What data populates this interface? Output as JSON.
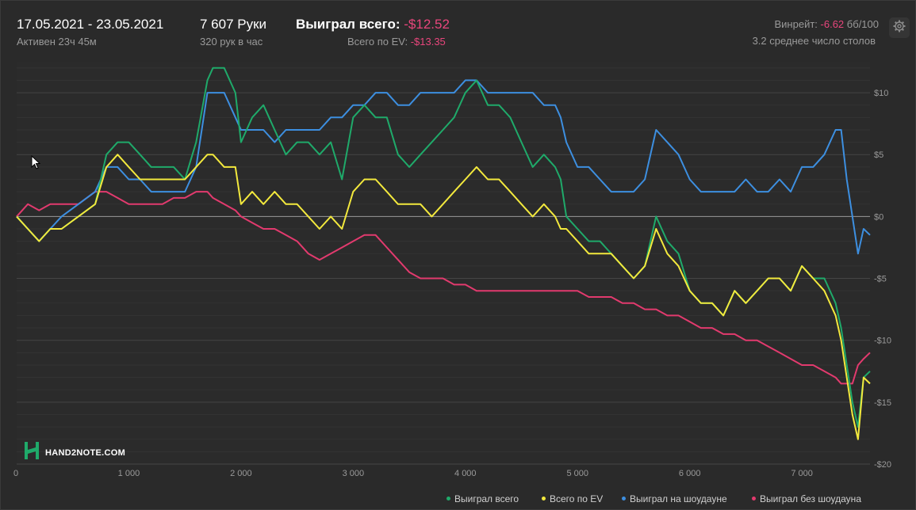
{
  "header": {
    "date_range": "17.05.2021 - 23.05.2021",
    "active": "Активен 23ч 45м",
    "hands": "7 607 Руки",
    "hands_per_hour": "320 рук в час",
    "won_total_label": "Выиграл всего:",
    "won_total_value": "-$12.52",
    "ev_label": "Всего по EV:",
    "ev_value": "-$13.35",
    "winrate_label": "Винрейт:",
    "winrate_value": "-6.62",
    "winrate_unit": "бб/100",
    "avg_tables": "3.2 среднее число столов",
    "settings_icon": "gear-icon"
  },
  "logo": {
    "text": "HAND2NOTE.COM"
  },
  "chart_data": {
    "type": "line",
    "x_ticks": [
      0,
      1000,
      2000,
      3000,
      4000,
      5000,
      6000,
      7000
    ],
    "x_tick_labels": [
      "0",
      "1 000",
      "2 000",
      "3 000",
      "4 000",
      "5 000",
      "6 000",
      "7 000"
    ],
    "xlim": [
      0,
      7607
    ],
    "y_ticks": [
      10,
      5,
      0,
      -5,
      -10,
      -15,
      -20
    ],
    "y_tick_labels": [
      "$10",
      "$5",
      "$0",
      "-$5",
      "-$10",
      "-$15",
      "-$20"
    ],
    "ylim": [
      -20,
      12.5
    ],
    "legend_position": "bottom-right",
    "series": [
      {
        "name": "Выиграл всего",
        "color": "#1faa6a",
        "x": [
          0,
          100,
          200,
          300,
          400,
          550,
          700,
          800,
          900,
          1000,
          1100,
          1200,
          1300,
          1400,
          1500,
          1600,
          1700,
          1750,
          1850,
          1950,
          2000,
          2100,
          2200,
          2300,
          2400,
          2500,
          2600,
          2700,
          2800,
          2900,
          3000,
          3100,
          3200,
          3300,
          3400,
          3500,
          3600,
          3700,
          3800,
          3900,
          4000,
          4100,
          4200,
          4300,
          4400,
          4500,
          4600,
          4700,
          4800,
          4850,
          4900,
          5000,
          5100,
          5200,
          5300,
          5400,
          5500,
          5600,
          5700,
          5800,
          5900,
          6000,
          6100,
          6200,
          6300,
          6400,
          6500,
          6600,
          6700,
          6800,
          6900,
          7000,
          7100,
          7200,
          7300,
          7350,
          7400,
          7450,
          7500,
          7550,
          7607
        ],
        "y": [
          0,
          -1,
          -2,
          -1,
          -1,
          0,
          1,
          5,
          6,
          6,
          5,
          4,
          4,
          4,
          3,
          6,
          11,
          12,
          12,
          10,
          6,
          8,
          9,
          7,
          5,
          6,
          6,
          5,
          6,
          3,
          8,
          9,
          8,
          8,
          5,
          4,
          5,
          6,
          7,
          8,
          10,
          11,
          9,
          9,
          8,
          6,
          4,
          5,
          4,
          3,
          0,
          -1,
          -2,
          -2,
          -3,
          -4,
          -5,
          -4,
          0,
          -2,
          -3,
          -6,
          -7,
          -7,
          -8,
          -6,
          -7,
          -6,
          -5,
          -5,
          -6,
          -4,
          -5,
          -5,
          -7,
          -9,
          -12,
          -15,
          -17,
          -13,
          -12.5
        ]
      },
      {
        "name": "Всего по EV",
        "color": "#f3e93d",
        "x": [
          0,
          100,
          200,
          300,
          400,
          550,
          700,
          800,
          900,
          1000,
          1100,
          1200,
          1300,
          1400,
          1500,
          1600,
          1700,
          1750,
          1850,
          1950,
          2000,
          2100,
          2200,
          2300,
          2400,
          2500,
          2600,
          2700,
          2800,
          2900,
          3000,
          3100,
          3200,
          3300,
          3400,
          3500,
          3600,
          3700,
          3800,
          3900,
          4000,
          4100,
          4200,
          4300,
          4400,
          4500,
          4600,
          4700,
          4800,
          4850,
          4900,
          5000,
          5100,
          5200,
          5300,
          5400,
          5500,
          5600,
          5700,
          5800,
          5900,
          6000,
          6100,
          6200,
          6300,
          6400,
          6500,
          6600,
          6700,
          6800,
          6900,
          7000,
          7100,
          7200,
          7300,
          7350,
          7400,
          7450,
          7500,
          7550,
          7607
        ],
        "y": [
          0,
          -1,
          -2,
          -1,
          -1,
          0,
          1,
          4,
          5,
          4,
          3,
          3,
          3,
          3,
          3,
          4,
          5,
          5,
          4,
          4,
          1,
          2,
          1,
          2,
          1,
          1,
          0,
          -1,
          0,
          -1,
          2,
          3,
          3,
          2,
          1,
          1,
          1,
          0,
          1,
          2,
          3,
          4,
          3,
          3,
          2,
          1,
          0,
          1,
          0,
          -1,
          -1,
          -2,
          -3,
          -3,
          -3,
          -4,
          -5,
          -4,
          -1,
          -3,
          -4,
          -6,
          -7,
          -7,
          -8,
          -6,
          -7,
          -6,
          -5,
          -5,
          -6,
          -4,
          -5,
          -6,
          -8,
          -10,
          -13,
          -16,
          -18,
          -13,
          -13.5
        ]
      },
      {
        "name": "Выиграл на шоудауне",
        "color": "#3d8fe0",
        "x": [
          0,
          100,
          200,
          300,
          400,
          550,
          700,
          800,
          900,
          1000,
          1100,
          1200,
          1300,
          1400,
          1500,
          1600,
          1700,
          1750,
          1850,
          1950,
          2000,
          2100,
          2200,
          2300,
          2400,
          2500,
          2600,
          2700,
          2800,
          2900,
          3000,
          3100,
          3200,
          3300,
          3400,
          3500,
          3600,
          3700,
          3800,
          3900,
          4000,
          4100,
          4200,
          4300,
          4400,
          4500,
          4600,
          4700,
          4800,
          4850,
          4900,
          5000,
          5100,
          5200,
          5300,
          5400,
          5500,
          5600,
          5700,
          5800,
          5900,
          6000,
          6100,
          6200,
          6300,
          6400,
          6500,
          6600,
          6700,
          6800,
          6900,
          7000,
          7100,
          7200,
          7300,
          7350,
          7400,
          7450,
          7500,
          7550,
          7607
        ],
        "y": [
          0,
          -1,
          -2,
          -1,
          0,
          1,
          2,
          4,
          4,
          3,
          3,
          2,
          2,
          2,
          2,
          4,
          10,
          10,
          10,
          8,
          7,
          7,
          7,
          6,
          7,
          7,
          7,
          7,
          8,
          8,
          9,
          9,
          10,
          10,
          9,
          9,
          10,
          10,
          10,
          10,
          11,
          11,
          10,
          10,
          10,
          10,
          10,
          9,
          9,
          8,
          6,
          4,
          4,
          3,
          2,
          2,
          2,
          3,
          7,
          6,
          5,
          3,
          2,
          2,
          2,
          2,
          3,
          2,
          2,
          3,
          2,
          4,
          4,
          5,
          7,
          7,
          3,
          0,
          -3,
          -1,
          -1.5
        ]
      },
      {
        "name": "Выиграл без шоудауна",
        "color": "#e23a6e",
        "x": [
          0,
          100,
          200,
          300,
          400,
          550,
          700,
          800,
          900,
          1000,
          1100,
          1200,
          1300,
          1400,
          1500,
          1600,
          1700,
          1750,
          1850,
          1950,
          2000,
          2100,
          2200,
          2300,
          2400,
          2500,
          2600,
          2700,
          2800,
          2900,
          3000,
          3100,
          3200,
          3300,
          3400,
          3500,
          3600,
          3700,
          3800,
          3900,
          4000,
          4100,
          4200,
          4300,
          4400,
          4500,
          4600,
          4700,
          4800,
          4850,
          4900,
          5000,
          5100,
          5200,
          5300,
          5400,
          5500,
          5600,
          5700,
          5800,
          5900,
          6000,
          6100,
          6200,
          6300,
          6400,
          6500,
          6600,
          6700,
          6800,
          6900,
          7000,
          7100,
          7200,
          7300,
          7350,
          7400,
          7450,
          7500,
          7550,
          7607
        ],
        "y": [
          0,
          1,
          0.5,
          1,
          1,
          1,
          2,
          2,
          1.5,
          1,
          1,
          1,
          1,
          1.5,
          1.5,
          2,
          2,
          1.5,
          1,
          0.5,
          0,
          -0.5,
          -1,
          -1,
          -1.5,
          -2,
          -3,
          -3.5,
          -3,
          -2.5,
          -2,
          -1.5,
          -1.5,
          -2.5,
          -3.5,
          -4.5,
          -5,
          -5,
          -5,
          -5.5,
          -5.5,
          -6,
          -6,
          -6,
          -6,
          -6,
          -6,
          -6,
          -6,
          -6,
          -6,
          -6,
          -6.5,
          -6.5,
          -6.5,
          -7,
          -7,
          -7.5,
          -7.5,
          -8,
          -8,
          -8.5,
          -9,
          -9,
          -9.5,
          -9.5,
          -10,
          -10,
          -10.5,
          -11,
          -11.5,
          -12,
          -12,
          -12.5,
          -13,
          -13.5,
          -13.5,
          -13.5,
          -12,
          -11.5,
          -11
        ]
      }
    ]
  }
}
